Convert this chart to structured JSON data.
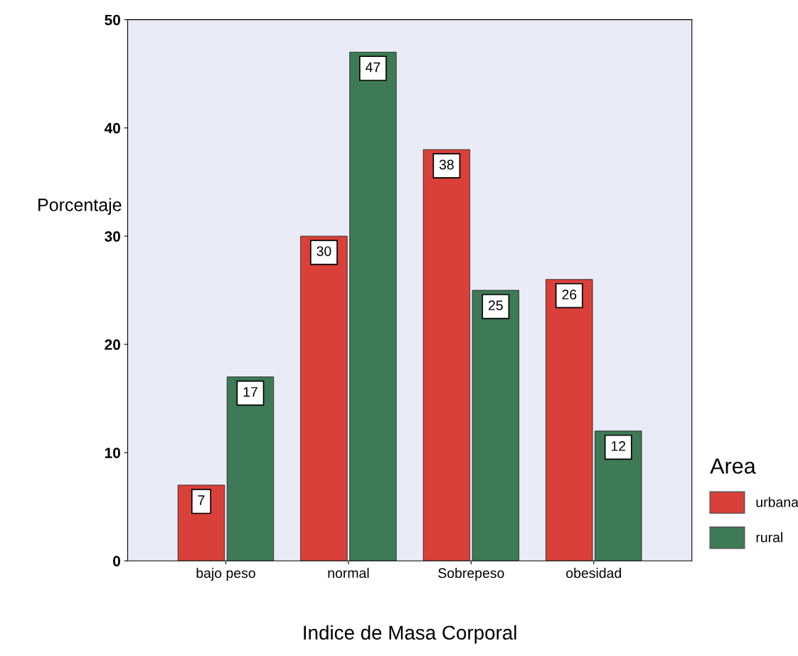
{
  "chart_data": {
    "type": "bar",
    "xlabel": "Indice de Masa Corporal",
    "ylabel": "Porcentaje",
    "legend_title": "Area",
    "categories": [
      "bajo peso",
      "normal",
      "Sobrepeso",
      "obesidad"
    ],
    "series": [
      {
        "name": "urbana",
        "color": "#d9403a",
        "values": [
          7,
          30,
          38,
          26
        ]
      },
      {
        "name": "rural",
        "color": "#3d7a55",
        "values": [
          17,
          47,
          25,
          12
        ]
      }
    ],
    "ylim": [
      0,
      50
    ],
    "yticks": [
      0,
      10,
      20,
      30,
      40,
      50
    ],
    "grid": false,
    "legend": "bottom right",
    "data_labels": true
  }
}
